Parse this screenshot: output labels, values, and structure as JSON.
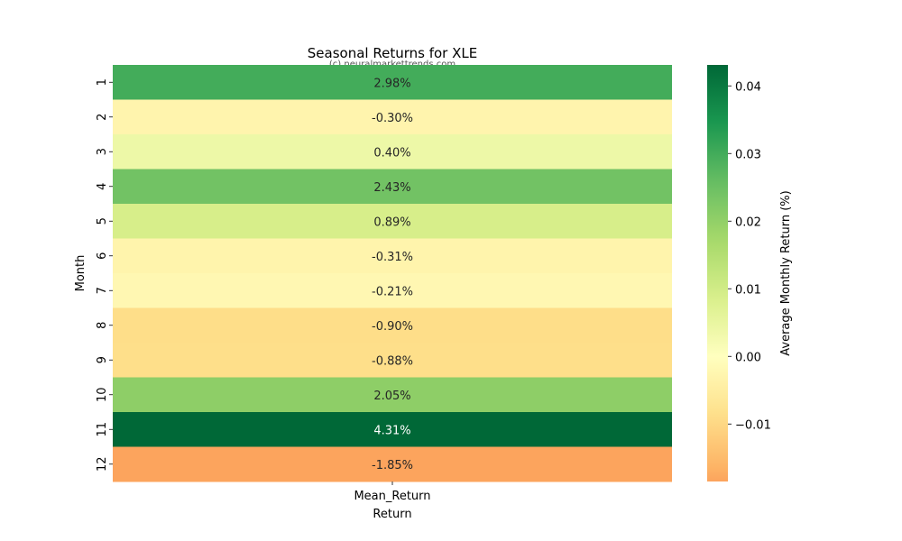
{
  "chart_data": {
    "type": "heatmap",
    "title": "Seasonal Returns for XLE",
    "watermark": "(c) neuralmarkettrends.com",
    "xlabel": "Return",
    "ylabel": "Month",
    "x_categories": [
      "Mean_Return"
    ],
    "y_categories": [
      "1",
      "2",
      "3",
      "4",
      "5",
      "6",
      "7",
      "8",
      "9",
      "10",
      "11",
      "12"
    ],
    "values": [
      0.0298,
      -0.003,
      0.004,
      0.0243,
      0.0089,
      -0.0031,
      -0.0021,
      -0.009,
      -0.0088,
      0.0205,
      0.0431,
      -0.0185
    ],
    "annotations": [
      "2.98%",
      "-0.30%",
      "0.40%",
      "2.43%",
      "0.89%",
      "-0.31%",
      "-0.21%",
      "-0.90%",
      "-0.88%",
      "2.05%",
      "4.31%",
      "-1.85%"
    ],
    "colormap": "RdYlGn",
    "colorbar": {
      "label": "Average Monthly Return (%)",
      "range": [
        -0.0185,
        0.0431
      ],
      "ticks": [
        0.04,
        0.03,
        0.02,
        0.01,
        0.0,
        -0.01
      ],
      "tick_labels": [
        "0.04",
        "0.03",
        "0.02",
        "0.01",
        "0.00",
        "−0.01"
      ]
    }
  }
}
